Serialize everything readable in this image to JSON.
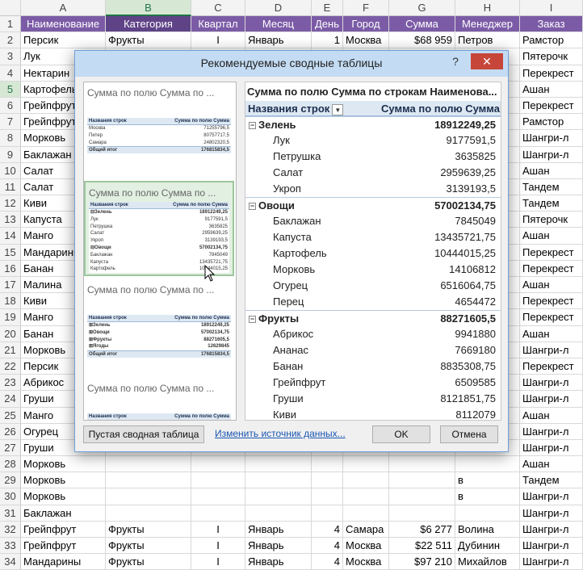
{
  "sheet": {
    "columns": [
      "A",
      "B",
      "C",
      "D",
      "E",
      "F",
      "G",
      "H",
      "I"
    ],
    "selected_column": "B",
    "header_row": [
      "Наименование",
      "Категория",
      "Квартал",
      "Месяц",
      "День",
      "Город",
      "Сумма",
      "Менеджер",
      "Заказ"
    ],
    "rows": [
      {
        "n": "2",
        "a": "Персик",
        "b": "Фрукты",
        "c": "I",
        "d": "Январь",
        "e": "1",
        "f": "Москва",
        "g": "$68 959",
        "h": "Петров",
        "i": "Рамстор"
      },
      {
        "n": "3",
        "a": "Лук",
        "b": "",
        "c": "",
        "d": "",
        "e": "",
        "f": "",
        "g": "",
        "h": "",
        "i": "Пятерочк"
      },
      {
        "n": "4",
        "a": "Нектарин",
        "b": "",
        "c": "",
        "d": "",
        "e": "",
        "f": "",
        "g": "",
        "h": "",
        "i": "Перекрест"
      },
      {
        "n": "5",
        "a": "Картофель",
        "b": "",
        "c": "",
        "d": "",
        "e": "",
        "f": "",
        "g": "",
        "h": "",
        "i": "Ашан"
      },
      {
        "n": "6",
        "a": "Грейпфрут",
        "b": "",
        "c": "",
        "d": "",
        "e": "",
        "f": "",
        "g": "",
        "h": "",
        "i": "Перекрест"
      },
      {
        "n": "7",
        "a": "Грейпфрут",
        "b": "",
        "c": "",
        "d": "",
        "e": "",
        "f": "",
        "g": "",
        "h": "в",
        "i": "Рамстор"
      },
      {
        "n": "8",
        "a": "Морковь",
        "b": "",
        "c": "",
        "d": "",
        "e": "",
        "f": "",
        "g": "",
        "h": "",
        "i": "Шангри-л"
      },
      {
        "n": "9",
        "a": "Баклажан",
        "b": "",
        "c": "",
        "d": "",
        "e": "",
        "f": "",
        "g": "",
        "h": "",
        "i": "Шангри-л"
      },
      {
        "n": "10",
        "a": "Салат",
        "b": "",
        "c": "",
        "d": "",
        "e": "",
        "f": "",
        "g": "",
        "h": "в",
        "i": "Ашан"
      },
      {
        "n": "11",
        "a": "Салат",
        "b": "",
        "c": "",
        "d": "",
        "e": "",
        "f": "",
        "g": "",
        "h": "в",
        "i": "Тандем"
      },
      {
        "n": "12",
        "a": "Киви",
        "b": "",
        "c": "",
        "d": "",
        "e": "",
        "f": "",
        "g": "",
        "h": "в",
        "i": "Тандем"
      },
      {
        "n": "13",
        "a": "Капуста",
        "b": "",
        "c": "",
        "d": "",
        "e": "",
        "f": "",
        "g": "",
        "h": "",
        "i": "Пятерочк"
      },
      {
        "n": "14",
        "a": "Манго",
        "b": "",
        "c": "",
        "d": "",
        "e": "",
        "f": "",
        "g": "",
        "h": "в",
        "i": "Ашан"
      },
      {
        "n": "15",
        "a": "Мандарины",
        "b": "",
        "c": "",
        "d": "",
        "e": "",
        "f": "",
        "g": "",
        "h": "",
        "i": "Перекрест"
      },
      {
        "n": "16",
        "a": "Банан",
        "b": "",
        "c": "",
        "d": "",
        "e": "",
        "f": "",
        "g": "",
        "h": "",
        "i": "Перекрест"
      },
      {
        "n": "17",
        "a": "Малина",
        "b": "",
        "c": "",
        "d": "",
        "e": "",
        "f": "",
        "g": "",
        "h": "",
        "i": "Ашан"
      },
      {
        "n": "18",
        "a": "Киви",
        "b": "",
        "c": "",
        "d": "",
        "e": "",
        "f": "",
        "g": "",
        "h": "",
        "i": "Перекрест"
      },
      {
        "n": "19",
        "a": "Манго",
        "b": "",
        "c": "",
        "d": "",
        "e": "",
        "f": "",
        "g": "",
        "h": "",
        "i": "Перекрест"
      },
      {
        "n": "20",
        "a": "Банан",
        "b": "",
        "c": "",
        "d": "",
        "e": "",
        "f": "",
        "g": "",
        "h": "",
        "i": "Ашан"
      },
      {
        "n": "21",
        "a": "Морковь",
        "b": "",
        "c": "",
        "d": "",
        "e": "",
        "f": "",
        "g": "",
        "h": "",
        "i": "Шангри-л"
      },
      {
        "n": "22",
        "a": "Персик",
        "b": "",
        "c": "",
        "d": "",
        "e": "",
        "f": "",
        "g": "",
        "h": "",
        "i": "Перекрест"
      },
      {
        "n": "23",
        "a": "Абрикос",
        "b": "",
        "c": "",
        "d": "",
        "e": "",
        "f": "",
        "g": "",
        "h": "",
        "i": "Шангри-л"
      },
      {
        "n": "24",
        "a": "Груши",
        "b": "",
        "c": "",
        "d": "",
        "e": "",
        "f": "",
        "g": "",
        "h": "",
        "i": "Шангри-л"
      },
      {
        "n": "25",
        "a": "Манго",
        "b": "",
        "c": "",
        "d": "",
        "e": "",
        "f": "",
        "g": "",
        "h": "",
        "i": "Ашан"
      },
      {
        "n": "26",
        "a": "Огурец",
        "b": "",
        "c": "",
        "d": "",
        "e": "",
        "f": "",
        "g": "",
        "h": "",
        "i": "Шангри-л"
      },
      {
        "n": "27",
        "a": "Груши",
        "b": "",
        "c": "",
        "d": "",
        "e": "",
        "f": "",
        "g": "",
        "h": "",
        "i": "Шангри-л"
      },
      {
        "n": "28",
        "a": "Морковь",
        "b": "",
        "c": "",
        "d": "",
        "e": "",
        "f": "",
        "g": "",
        "h": "",
        "i": "Ашан"
      },
      {
        "n": "29",
        "a": "Морковь",
        "b": "",
        "c": "",
        "d": "",
        "e": "",
        "f": "",
        "g": "",
        "h": "в",
        "i": "Тандем"
      },
      {
        "n": "30",
        "a": "Морковь",
        "b": "",
        "c": "",
        "d": "",
        "e": "",
        "f": "",
        "g": "",
        "h": "в",
        "i": "Шангри-л"
      },
      {
        "n": "31",
        "a": "Баклажан",
        "b": "",
        "c": "",
        "d": "",
        "e": "",
        "f": "",
        "g": "",
        "h": "",
        "i": "Шангри-л"
      },
      {
        "n": "32",
        "a": "Грейпфрут",
        "b": "Фрукты",
        "c": "I",
        "d": "Январь",
        "e": "4",
        "f": "Самара",
        "g": "$6 277",
        "h": "Волина",
        "i": "Шангри-л"
      },
      {
        "n": "33",
        "a": "Грейпфрут",
        "b": "Фрукты",
        "c": "I",
        "d": "Январь",
        "e": "4",
        "f": "Москва",
        "g": "$22 511",
        "h": "Дубинин",
        "i": "Шангри-л"
      },
      {
        "n": "34",
        "a": "Мандарины",
        "b": "Фрукты",
        "c": "I",
        "d": "Январь",
        "e": "4",
        "f": "Москва",
        "g": "$97 210",
        "h": "Михайлов",
        "i": "Шангри-л"
      }
    ]
  },
  "dialog": {
    "title": "Рекомендуемые сводные таблицы",
    "help": "?",
    "close": "✕",
    "thumbs": [
      {
        "title": "Сумма по полю Сумма по ...",
        "head": [
          "Названия строк",
          "Сумма по полю Сумма"
        ],
        "rows": [
          {
            "l": "Москва",
            "v": "71255796,5",
            "k": ""
          },
          {
            "l": "Питер",
            "v": "80757717,5",
            "k": ""
          },
          {
            "l": "Самара",
            "v": "24802320,5",
            "k": ""
          },
          {
            "l": "Общий итог",
            "v": "176815834,5",
            "k": "t"
          }
        ]
      },
      {
        "title": "Сумма по полю Сумма по ...",
        "head": [
          "Названия строк",
          "Сумма по полю Сумма"
        ],
        "rows": [
          {
            "l": "⊟Зелень",
            "v": "18912249,25",
            "k": "b"
          },
          {
            "l": "   Лук",
            "v": "9177591,5",
            "k": ""
          },
          {
            "l": "   Петрушка",
            "v": "3635825",
            "k": ""
          },
          {
            "l": "   Салат",
            "v": "2959639,25",
            "k": ""
          },
          {
            "l": "   Укроп",
            "v": "3139193,5",
            "k": ""
          },
          {
            "l": "⊟Овощи",
            "v": "57002134,75",
            "k": "b"
          },
          {
            "l": "   Баклажан",
            "v": "7845049",
            "k": ""
          },
          {
            "l": "   Капуста",
            "v": "13435721,75",
            "k": ""
          },
          {
            "l": "   Картофель",
            "v": "10444015,25",
            "k": ""
          }
        ]
      },
      {
        "title": "Сумма по полю Сумма по ...",
        "head": [
          "Названия строк",
          "Сумма по полю Сумма"
        ],
        "rows": [
          {
            "l": "⊞Зелень",
            "v": "18912249,25",
            "k": "b"
          },
          {
            "l": "⊞Овощи",
            "v": "57002134,75",
            "k": "b"
          },
          {
            "l": "⊞Фрукты",
            "v": "88271605,5",
            "k": "b"
          },
          {
            "l": "⊞Ягоды",
            "v": "12629845",
            "k": "b"
          },
          {
            "l": "Общий итог",
            "v": "176815834,5",
            "k": "t"
          }
        ]
      },
      {
        "title": "Сумма по полю Сумма по ...",
        "head": [
          "Названия строк",
          "Сумма по полю Сумма"
        ],
        "rows": [
          {
            "l": "Ашан",
            "v": "32318619,5",
            "k": ""
          }
        ]
      }
    ],
    "preview": {
      "title": "Сумма по полю Сумма по строкам Наименова...",
      "col1": "Названия строк",
      "col2": "Сумма по полю Сумма",
      "rows": [
        {
          "label": "Зелень",
          "value": "18912249,25",
          "group": true
        },
        {
          "label": "Лук",
          "value": "9177591,5",
          "group": false
        },
        {
          "label": "Петрушка",
          "value": "3635825",
          "group": false
        },
        {
          "label": "Салат",
          "value": "2959639,25",
          "group": false
        },
        {
          "label": "Укроп",
          "value": "3139193,5",
          "group": false
        },
        {
          "label": "Овощи",
          "value": "57002134,75",
          "group": true
        },
        {
          "label": "Баклажан",
          "value": "7845049",
          "group": false
        },
        {
          "label": "Капуста",
          "value": "13435721,75",
          "group": false
        },
        {
          "label": "Картофель",
          "value": "10444015,25",
          "group": false
        },
        {
          "label": "Морковь",
          "value": "14106812",
          "group": false
        },
        {
          "label": "Огурец",
          "value": "6516064,75",
          "group": false
        },
        {
          "label": "Перец",
          "value": "4654472",
          "group": false
        },
        {
          "label": "Фрукты",
          "value": "88271605,5",
          "group": true
        },
        {
          "label": "Абрикос",
          "value": "9941880",
          "group": false
        },
        {
          "label": "Ананас",
          "value": "7669180",
          "group": false
        },
        {
          "label": "Банан",
          "value": "8835308,75",
          "group": false
        },
        {
          "label": "Грейпфрут",
          "value": "6509585",
          "group": false
        },
        {
          "label": "Груши",
          "value": "8121851,75",
          "group": false
        },
        {
          "label": "Киви",
          "value": "8112079",
          "group": false
        }
      ]
    },
    "buttons": {
      "blank": "Пустая сводная таблица",
      "change_source": "Изменить источник данных...",
      "ok": "OK",
      "cancel": "Отмена"
    },
    "icons": {
      "collapse": "minus-box-icon",
      "scroll_up": "triangle-up-icon",
      "scroll_down": "triangle-down-icon",
      "dropdown": "filter-dropdown-icon",
      "cursor": "mouse-pointer-icon"
    },
    "colors": {
      "header_bg": "#7b5ba6",
      "title_bar": "#c4dcf3",
      "close": "#c7463a",
      "selected_thumb": "#e2f0e2",
      "pivot_header": "#dde8f3"
    }
  }
}
